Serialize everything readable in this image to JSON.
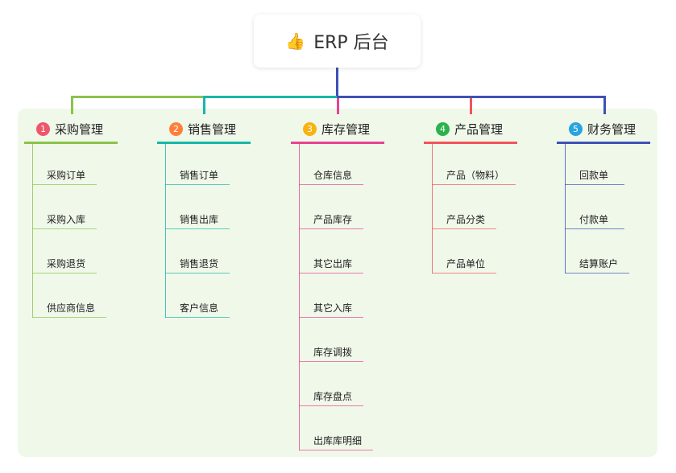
{
  "root": {
    "title": "ERP 后台",
    "icon": "thumbs-up-icon"
  },
  "branches": [
    {
      "index": "1",
      "title": "采购管理",
      "color": "#8bc34a",
      "badge_color": "#f0566a",
      "children": [
        "采购订单",
        "采购入库",
        "采购退货",
        "供应商信息"
      ]
    },
    {
      "index": "2",
      "title": "销售管理",
      "color": "#17b8a6",
      "badge_color": "#ff7f3a",
      "children": [
        "销售订单",
        "销售出库",
        "销售退货",
        "客户信息"
      ]
    },
    {
      "index": "3",
      "title": "库存管理",
      "color": "#e84393",
      "badge_color": "#f9b20f",
      "children": [
        "仓库信息",
        "产品库存",
        "其它出库",
        "其它入库",
        "库存调拨",
        "库存盘点",
        "出库库明细"
      ]
    },
    {
      "index": "4",
      "title": "产品管理",
      "color": "#f2545b",
      "badge_color": "#2bb24c",
      "children": [
        "产品（物料）",
        "产品分类",
        "产品单位"
      ]
    },
    {
      "index": "5",
      "title": "财务管理",
      "color": "#3f51b5",
      "badge_color": "#29a4e0",
      "children": [
        "回款单",
        "付款单",
        "结算账户"
      ]
    }
  ]
}
